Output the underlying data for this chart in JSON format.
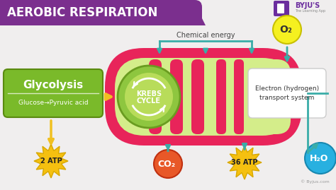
{
  "title": "AEROBIC RESPIRATION",
  "title_bg": "#7b2f8e",
  "title_color": "#ffffff",
  "bg_color": "#f0eeee",
  "subtitle_chemical": "Chemical energy",
  "glycolysis_label": "Glycolysis",
  "glycolysis_sub": "Glucose→Pyruvic acid",
  "glycolysis_bg": "#7aba2a",
  "krebs_label": "KREBS\nCYCLE",
  "krebs_bg_outer": "#8ec63f",
  "krebs_bg_inner": "#b5d96a",
  "electron_label": "Electron (hydrogen)\ntransport system",
  "mito_outer_color": "#e8245a",
  "mito_inner_color": "#d4ed8a",
  "cristae_color": "#e8245a",
  "atp2_label": "2 ATP",
  "atp36_label": "36 ATP",
  "co2_label": "CO₂",
  "o2_label": "O₂",
  "h2o_label": "H₂O",
  "yellow_arrow": "#f0c020",
  "teal_arrow": "#3aada8",
  "byju_text": "© Byjus.com",
  "byju_purple": "#6b2d9e"
}
